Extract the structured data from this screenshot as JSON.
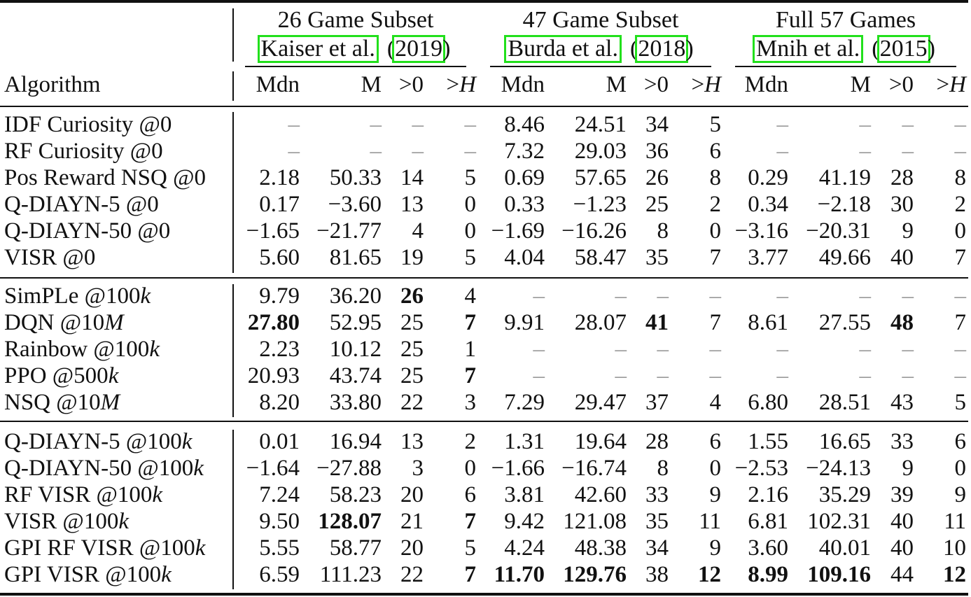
{
  "table": {
    "header": {
      "algorithm_label": "Algorithm",
      "groups": [
        {
          "title": "26 Game Subset",
          "cite_author": "Kaiser et al.",
          "cite_year": "2019"
        },
        {
          "title": "47 Game Subset",
          "cite_author": "Burda et al.",
          "cite_year": "2018"
        },
        {
          "title": "Full 57 Games",
          "cite_author": "Mnih et al.",
          "cite_year": "2015"
        }
      ],
      "subcolumns": [
        "Mdn",
        "M",
        ">0",
        ">H"
      ],
      "cite_box_color": "#22e01c"
    },
    "rows": [
      {
        "algo": "IDF Curiosity @0",
        "v": [
          "–",
          "–",
          "–",
          "–",
          "8.46",
          "24.51",
          "34",
          "5",
          "–",
          "–",
          "–",
          "–"
        ],
        "bold": []
      },
      {
        "algo": "RF Curiosity @0",
        "v": [
          "–",
          "–",
          "–",
          "–",
          "7.32",
          "29.03",
          "36",
          "6",
          "–",
          "–",
          "–",
          "–"
        ],
        "bold": []
      },
      {
        "algo": "Pos Reward NSQ @0",
        "v": [
          "2.18",
          "50.33",
          "14",
          "5",
          "0.69",
          "57.65",
          "26",
          "8",
          "0.29",
          "41.19",
          "28",
          "8"
        ],
        "bold": []
      },
      {
        "algo": "Q-DIAYN-5 @0",
        "v": [
          "0.17",
          "−3.60",
          "13",
          "0",
          "0.33",
          "−1.23",
          "25",
          "2",
          "0.34",
          "−2.18",
          "30",
          "2"
        ],
        "bold": []
      },
      {
        "algo": "Q-DIAYN-50 @0",
        "v": [
          "−1.65",
          "−21.77",
          "4",
          "0",
          "−1.69",
          "−16.26",
          "8",
          "0",
          "−3.16",
          "−20.31",
          "9",
          "0"
        ],
        "bold": []
      },
      {
        "algo": "VISR @0",
        "v": [
          "5.60",
          "81.65",
          "19",
          "5",
          "4.04",
          "58.47",
          "35",
          "7",
          "3.77",
          "49.66",
          "40",
          "7"
        ],
        "bold": []
      },
      {
        "algo_prefix": "SimPLe @100",
        "algo_suffix": "k",
        "v": [
          "9.79",
          "36.20",
          "26",
          "4",
          "–",
          "–",
          "–",
          "–",
          "–",
          "–",
          "–",
          "–"
        ],
        "bold": [
          2
        ]
      },
      {
        "algo_prefix": "DQN @10",
        "algo_suffix": "M",
        "v": [
          "27.80",
          "52.95",
          "25",
          "7",
          "9.91",
          "28.07",
          "41",
          "7",
          "8.61",
          "27.55",
          "48",
          "7"
        ],
        "bold": [
          0,
          3,
          6,
          10
        ]
      },
      {
        "algo_prefix": "Rainbow @100",
        "algo_suffix": "k",
        "v": [
          "2.23",
          "10.12",
          "25",
          "1",
          "–",
          "–",
          "–",
          "–",
          "–",
          "–",
          "–",
          "–"
        ],
        "bold": []
      },
      {
        "algo_prefix": "PPO @500",
        "algo_suffix": "k",
        "v": [
          "20.93",
          "43.74",
          "25",
          "7",
          "–",
          "–",
          "–",
          "–",
          "–",
          "–",
          "–",
          "–"
        ],
        "bold": [
          3
        ]
      },
      {
        "algo_prefix": "NSQ @10",
        "algo_suffix": "M",
        "v": [
          "8.20",
          "33.80",
          "22",
          "3",
          "7.29",
          "29.47",
          "37",
          "4",
          "6.80",
          "28.51",
          "43",
          "5"
        ],
        "bold": []
      },
      {
        "algo_prefix": "Q-DIAYN-5 @100",
        "algo_suffix": "k",
        "v": [
          "0.01",
          "16.94",
          "13",
          "2",
          "1.31",
          "19.64",
          "28",
          "6",
          "1.55",
          "16.65",
          "33",
          "6"
        ],
        "bold": []
      },
      {
        "algo_prefix": "Q-DIAYN-50 @100",
        "algo_suffix": "k",
        "v": [
          "−1.64",
          "−27.88",
          "3",
          "0",
          "−1.66",
          "−16.74",
          "8",
          "0",
          "−2.53",
          "−24.13",
          "9",
          "0"
        ],
        "bold": []
      },
      {
        "algo_prefix": "RF VISR @100",
        "algo_suffix": "k",
        "v": [
          "7.24",
          "58.23",
          "20",
          "6",
          "3.81",
          "42.60",
          "33",
          "9",
          "2.16",
          "35.29",
          "39",
          "9"
        ],
        "bold": []
      },
      {
        "algo_prefix": "VISR @100",
        "algo_suffix": "k",
        "v": [
          "9.50",
          "128.07",
          "21",
          "7",
          "9.42",
          "121.08",
          "35",
          "11",
          "6.81",
          "102.31",
          "40",
          "11"
        ],
        "bold": [
          1,
          3
        ]
      },
      {
        "algo_prefix": "GPI RF VISR @100",
        "algo_suffix": "k",
        "v": [
          "5.55",
          "58.77",
          "20",
          "5",
          "4.24",
          "48.38",
          "34",
          "9",
          "3.60",
          "40.01",
          "40",
          "10"
        ],
        "bold": []
      },
      {
        "algo_prefix": "GPI VISR @100",
        "algo_suffix": "k",
        "v": [
          "6.59",
          "111.23",
          "22",
          "7",
          "11.70",
          "129.76",
          "38",
          "12",
          "8.99",
          "109.16",
          "44",
          "12"
        ],
        "bold": [
          3,
          4,
          5,
          7,
          8,
          9,
          11
        ]
      }
    ]
  }
}
